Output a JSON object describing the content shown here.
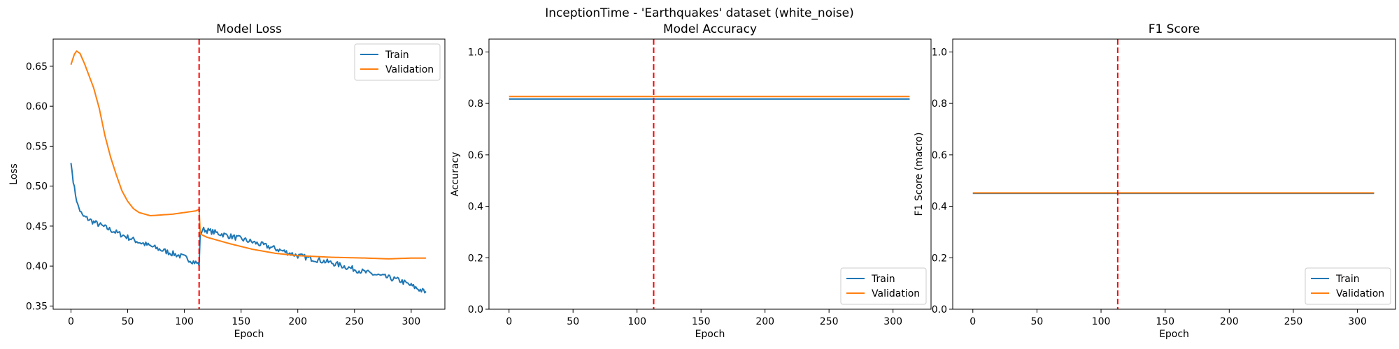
{
  "suptitle": "InceptionTime - 'Earthquakes' dataset (white_noise)",
  "colors": {
    "train": "#1f77b4",
    "validation": "#ff7f0e",
    "marker": "#ff0000"
  },
  "chart_data": [
    {
      "type": "line",
      "title": "Model Loss",
      "xlabel": "Epoch",
      "ylabel": "Loss",
      "xlim": [
        -15.7,
        329.7
      ],
      "ylim": [
        0.346,
        0.684
      ],
      "xticks": [
        0,
        50,
        100,
        150,
        200,
        250,
        300
      ],
      "yticks": [
        0.35,
        0.4,
        0.45,
        0.5,
        0.55,
        0.6,
        0.65
      ],
      "ytick_labels": [
        "0.35",
        "0.40",
        "0.45",
        "0.50",
        "0.55",
        "0.60",
        "0.65"
      ],
      "vline_x": 113,
      "legend_loc": "upper right",
      "series": [
        {
          "name": "Train",
          "noise": 0.0035,
          "points": [
            [
              0,
              0.529
            ],
            [
              3,
              0.497
            ],
            [
              6,
              0.476
            ],
            [
              10,
              0.463
            ],
            [
              20,
              0.455
            ],
            [
              40,
              0.442
            ],
            [
              60,
              0.43
            ],
            [
              80,
              0.42
            ],
            [
              100,
              0.411
            ],
            [
              112,
              0.403
            ],
            [
              113,
              0.402
            ],
            [
              114,
              0.44
            ],
            [
              116,
              0.446
            ],
            [
              130,
              0.441
            ],
            [
              150,
              0.434
            ],
            [
              175,
              0.424
            ],
            [
              200,
              0.413
            ],
            [
              230,
              0.404
            ],
            [
              260,
              0.392
            ],
            [
              290,
              0.382
            ],
            [
              313,
              0.367
            ]
          ]
        },
        {
          "name": "Validation",
          "noise": 0,
          "points": [
            [
              0,
              0.652
            ],
            [
              3,
              0.665
            ],
            [
              5,
              0.669
            ],
            [
              8,
              0.666
            ],
            [
              12,
              0.653
            ],
            [
              20,
              0.623
            ],
            [
              25,
              0.597
            ],
            [
              30,
              0.563
            ],
            [
              35,
              0.536
            ],
            [
              40,
              0.514
            ],
            [
              45,
              0.494
            ],
            [
              50,
              0.481
            ],
            [
              55,
              0.472
            ],
            [
              60,
              0.467
            ],
            [
              70,
              0.463
            ],
            [
              80,
              0.464
            ],
            [
              90,
              0.465
            ],
            [
              100,
              0.467
            ],
            [
              110,
              0.469
            ],
            [
              113,
              0.471
            ],
            [
              114,
              0.44
            ],
            [
              120,
              0.436
            ],
            [
              140,
              0.428
            ],
            [
              160,
              0.421
            ],
            [
              180,
              0.416
            ],
            [
              200,
              0.413
            ],
            [
              230,
              0.411
            ],
            [
              260,
              0.41
            ],
            [
              280,
              0.409
            ],
            [
              300,
              0.41
            ],
            [
              313,
              0.41
            ]
          ]
        }
      ]
    },
    {
      "type": "line",
      "title": "Model Accuracy",
      "xlabel": "Epoch",
      "ylabel": "Accuracy",
      "xlim": [
        -15.7,
        329.7
      ],
      "ylim": [
        0,
        1.05
      ],
      "xticks": [
        0,
        50,
        100,
        150,
        200,
        250,
        300
      ],
      "yticks": [
        0,
        0.2,
        0.4,
        0.6,
        0.8,
        1.0
      ],
      "ytick_labels": [
        "0.0",
        "0.2",
        "0.4",
        "0.6",
        "0.8",
        "1.0"
      ],
      "vline_x": 113,
      "legend_loc": "lower right",
      "series": [
        {
          "name": "Train",
          "noise": 0,
          "points": [
            [
              0,
              0.817
            ],
            [
              313,
              0.817
            ]
          ]
        },
        {
          "name": "Validation",
          "noise": 0,
          "points": [
            [
              0,
              0.827
            ],
            [
              313,
              0.827
            ]
          ]
        }
      ]
    },
    {
      "type": "line",
      "title": "F1 Score",
      "xlabel": "Epoch",
      "ylabel": "F1 Score (macro)",
      "xlim": [
        -15.7,
        329.7
      ],
      "ylim": [
        0,
        1.05
      ],
      "xticks": [
        0,
        50,
        100,
        150,
        200,
        250,
        300
      ],
      "yticks": [
        0,
        0.2,
        0.4,
        0.6,
        0.8,
        1.0
      ],
      "ytick_labels": [
        "0.0",
        "0.2",
        "0.4",
        "0.6",
        "0.8",
        "1.0"
      ],
      "vline_x": 113,
      "legend_loc": "lower right",
      "series": [
        {
          "name": "Train",
          "noise": 0,
          "points": [
            [
              0,
              0.45
            ],
            [
              313,
              0.45
            ]
          ]
        },
        {
          "name": "Validation",
          "noise": 0,
          "points": [
            [
              0,
              0.452
            ],
            [
              313,
              0.452
            ]
          ]
        }
      ]
    }
  ]
}
